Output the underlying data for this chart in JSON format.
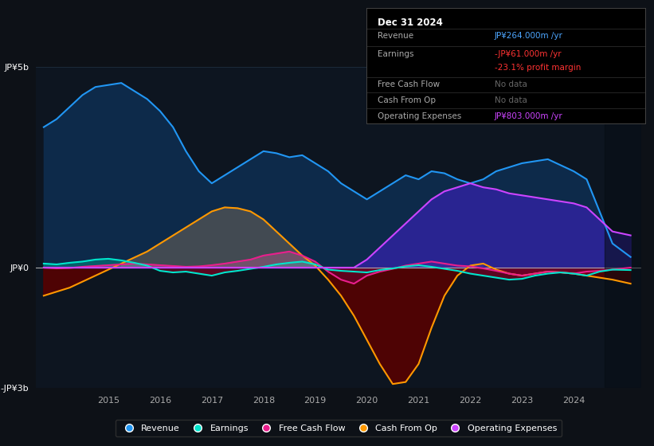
{
  "bg_color": "#0d1117",
  "plot_bg_color": "#0d1520",
  "grid_color": "#1e2d3d",
  "zero_line_color": "#888888",
  "ylim": [
    -3000,
    5000
  ],
  "yticks": [
    -3000,
    0,
    5000
  ],
  "ytick_labels": [
    "-JP¥3b",
    "JP¥0",
    "JP¥5b"
  ],
  "xlim": [
    2013.6,
    2025.3
  ],
  "xticks": [
    2015,
    2016,
    2017,
    2018,
    2019,
    2020,
    2021,
    2022,
    2023,
    2024
  ],
  "revenue_color": "#2196F3",
  "revenue_fill": "#0d2a4a",
  "earnings_color": "#00e5cc",
  "fcf_color": "#e91e8c",
  "cashop_color": "#ff9800",
  "opex_color": "#cc44ff",
  "years": [
    2013.75,
    2014.0,
    2014.25,
    2014.5,
    2014.75,
    2015.0,
    2015.25,
    2015.5,
    2015.75,
    2016.0,
    2016.25,
    2016.5,
    2016.75,
    2017.0,
    2017.25,
    2017.5,
    2017.75,
    2018.0,
    2018.25,
    2018.5,
    2018.75,
    2019.0,
    2019.25,
    2019.5,
    2019.75,
    2020.0,
    2020.25,
    2020.5,
    2020.75,
    2021.0,
    2021.25,
    2021.5,
    2021.75,
    2022.0,
    2022.25,
    2022.5,
    2022.75,
    2023.0,
    2023.25,
    2023.5,
    2023.75,
    2024.0,
    2024.25,
    2024.5,
    2024.75,
    2025.1
  ],
  "revenue": [
    3500,
    3700,
    4000,
    4300,
    4500,
    4550,
    4600,
    4400,
    4200,
    3900,
    3500,
    2900,
    2400,
    2100,
    2300,
    2500,
    2700,
    2900,
    2850,
    2750,
    2800,
    2600,
    2400,
    2100,
    1900,
    1700,
    1900,
    2100,
    2300,
    2200,
    2400,
    2350,
    2200,
    2100,
    2200,
    2400,
    2500,
    2600,
    2650,
    2700,
    2550,
    2400,
    2200,
    1400,
    600,
    264
  ],
  "earnings": [
    100,
    80,
    120,
    150,
    200,
    220,
    180,
    120,
    50,
    -80,
    -120,
    -100,
    -150,
    -200,
    -120,
    -80,
    -30,
    20,
    80,
    120,
    150,
    80,
    -50,
    -80,
    -100,
    -120,
    -60,
    -20,
    30,
    60,
    20,
    -30,
    -80,
    -150,
    -200,
    -250,
    -300,
    -280,
    -200,
    -150,
    -120,
    -150,
    -200,
    -100,
    -50,
    -61
  ],
  "fcf": [
    0,
    -20,
    -10,
    20,
    40,
    60,
    80,
    100,
    80,
    60,
    40,
    20,
    30,
    60,
    100,
    150,
    200,
    300,
    350,
    400,
    300,
    150,
    -100,
    -300,
    -400,
    -200,
    -100,
    -30,
    50,
    100,
    150,
    100,
    50,
    30,
    -20,
    -80,
    -150,
    -200,
    -150,
    -100,
    -120,
    -150,
    -100,
    -80,
    -50,
    0
  ],
  "cashop": [
    -700,
    -600,
    -500,
    -350,
    -200,
    -50,
    100,
    250,
    400,
    600,
    800,
    1000,
    1200,
    1400,
    1500,
    1480,
    1400,
    1200,
    900,
    600,
    300,
    50,
    -300,
    -700,
    -1200,
    -1800,
    -2400,
    -2900,
    -2850,
    -2400,
    -1500,
    -700,
    -200,
    50,
    100,
    -50,
    -150,
    -200,
    -150,
    -100,
    -120,
    -150,
    -200,
    -250,
    -300,
    -400
  ],
  "opex": [
    0,
    0,
    0,
    0,
    0,
    0,
    0,
    0,
    0,
    0,
    0,
    0,
    0,
    0,
    0,
    0,
    0,
    0,
    0,
    0,
    0,
    0,
    0,
    0,
    0,
    200,
    500,
    800,
    1100,
    1400,
    1700,
    1900,
    2000,
    2100,
    2000,
    1950,
    1850,
    1800,
    1750,
    1700,
    1650,
    1600,
    1500,
    1200,
    900,
    803
  ],
  "info_box": {
    "title": "Dec 31 2024",
    "rows": [
      {
        "label": "Revenue",
        "value": "JP¥264.000m /yr",
        "lcolor": "#aaaaaa",
        "vcolor": "#4da6ff"
      },
      {
        "label": "Earnings",
        "value": "-JP¥61.000m /yr",
        "lcolor": "#aaaaaa",
        "vcolor": "#ff3333"
      },
      {
        "label": "",
        "value": "-23.1% profit margin",
        "lcolor": "#aaaaaa",
        "vcolor": "#ff3333"
      },
      {
        "label": "Free Cash Flow",
        "value": "No data",
        "lcolor": "#aaaaaa",
        "vcolor": "#666666"
      },
      {
        "label": "Cash From Op",
        "value": "No data",
        "lcolor": "#aaaaaa",
        "vcolor": "#666666"
      },
      {
        "label": "Operating Expenses",
        "value": "JP¥803.000m /yr",
        "lcolor": "#aaaaaa",
        "vcolor": "#cc44ff"
      }
    ]
  },
  "legend": [
    {
      "label": "Revenue",
      "color": "#2196F3"
    },
    {
      "label": "Earnings",
      "color": "#00e5cc"
    },
    {
      "label": "Free Cash Flow",
      "color": "#e91e8c"
    },
    {
      "label": "Cash From Op",
      "color": "#ff9800"
    },
    {
      "label": "Operating Expenses",
      "color": "#cc44ff"
    }
  ]
}
